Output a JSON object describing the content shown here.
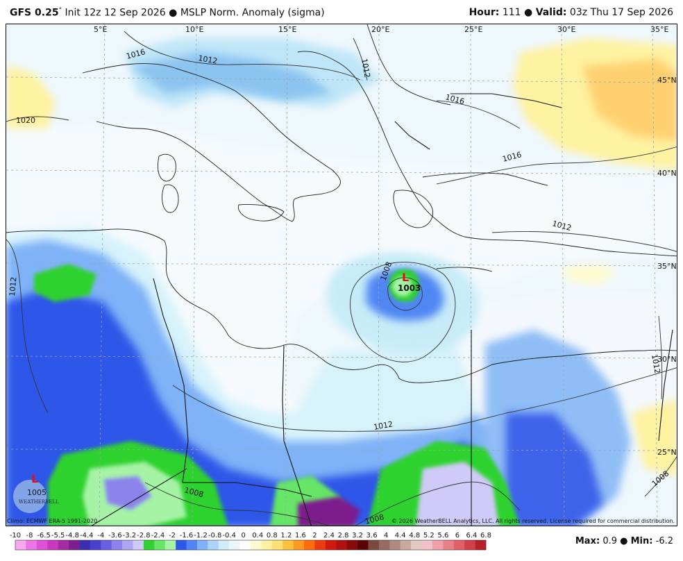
{
  "header": {
    "model": "GFS 0.25",
    "degree": "°",
    "init": "Init 12z 12 Sep 2026",
    "product": "MSLP Norm. Anomaly (sigma)",
    "hour_label": "Hour:",
    "hour_value": "111",
    "valid_label": "Valid:",
    "valid_value": "03z Thu 17 Sep 2026",
    "bullet": "●"
  },
  "map": {
    "lon_labels": [
      "5°E",
      "10°E",
      "15°E",
      "20°E",
      "25°E",
      "30°E",
      "35°E"
    ],
    "lat_labels": [
      "45°N",
      "40°N",
      "35°N",
      "30°N",
      "25°N"
    ],
    "isobar_labels": [
      "1016",
      "1012",
      "1012",
      "1016",
      "1016",
      "1020",
      "1012",
      "1012",
      "1008",
      "1012",
      "1012",
      "1008",
      "1008",
      "1008"
    ],
    "low_center_value": "1003",
    "low_marker": "L",
    "logo_value": "1005",
    "logo_text": "WEATHERBELL"
  },
  "footer": {
    "climo": "Climo: ECMWF ERA-5 1991-2020",
    "copyright": "© 2026 WeatherBELL Analytics, LLC. All rights reserved. License required for commercial distribution."
  },
  "colorbar": {
    "ticks": [
      "-10",
      "-8",
      "-6.5",
      "-5.5",
      "-4.8",
      "-4.4",
      "-4",
      "-3.6",
      "-3.2",
      "-2.8",
      "-2.4",
      "-2",
      "-1.6",
      "-1.2",
      "-0.8",
      "-0.4",
      "0",
      "0.4",
      "0.8",
      "1.2",
      "1.6",
      "2",
      "2.4",
      "2.8",
      "3.2",
      "3.6",
      "4",
      "4.4",
      "4.8",
      "5.2",
      "5.6",
      "6",
      "6.4",
      "6.8"
    ],
    "colors": [
      "#f7a8f0",
      "#ec74e6",
      "#df4fd9",
      "#c639c0",
      "#a52ba1",
      "#7d1f8c",
      "#3b2eb0",
      "#4a3fcf",
      "#6a5fe0",
      "#8c83ea",
      "#aea6f2",
      "#cfcaf7",
      "#2fd22f",
      "#66e566",
      "#a6f3a6",
      "#2e57e8",
      "#4f86f4",
      "#7fb2f7",
      "#aed3f9",
      "#d2ecfb",
      "#eaf8fc",
      "#ffffff",
      "#fffbd0",
      "#fff2a0",
      "#ffe070",
      "#ffc040",
      "#ff9a20",
      "#ff6a10",
      "#ee3a10",
      "#d01a10",
      "#b01010",
      "#880a0a",
      "#5a0505",
      "#7a4a40",
      "#956a60",
      "#b08a80",
      "#c9aaa0",
      "#e0c8c0",
      "#f2c0c8",
      "#f0a0a8",
      "#e88088",
      "#e06068",
      "#d04048",
      "#b82028"
    ]
  },
  "stats": {
    "max_label": "Max:",
    "max_value": "0.9",
    "min_label": "Min:",
    "min_value": "-6.2",
    "bullet": "●"
  }
}
